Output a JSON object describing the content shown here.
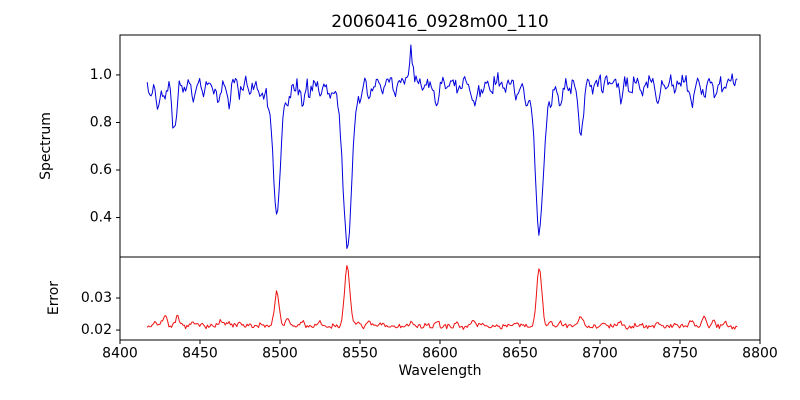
{
  "figure": {
    "background": "#ffffff"
  },
  "chart_data": {
    "type": "line",
    "title": "20060416_0928m00_110",
    "xlabel": "Wavelength",
    "grid": false,
    "legend": false,
    "x_range": [
      8400,
      8800
    ],
    "x_data_range": [
      8417,
      8786
    ],
    "x_ticks": [
      8400,
      8450,
      8500,
      8550,
      8600,
      8650,
      8700,
      8750,
      8800
    ],
    "x_tick_labels": [
      "8400",
      "8450",
      "8500",
      "8550",
      "8600",
      "8650",
      "8700",
      "8750",
      "8800"
    ],
    "main_absorption_lines": [
      8498,
      8542,
      8662
    ],
    "panels": [
      {
        "name": "spectrum",
        "ylabel": "Spectrum",
        "color": "#0000dd",
        "ylim": [
          0.234,
          1.168
        ],
        "y_ticks": [
          0.4,
          0.6,
          0.8,
          1.0
        ],
        "y_tick_labels": [
          "0.4",
          "0.6",
          "0.8",
          "1.0"
        ],
        "baseline": 0.975,
        "noise_amplitude": 0.045,
        "feature_sign": -1,
        "features_format": [
          "center_wavelength",
          "depth",
          "sigma"
        ],
        "features": [
          [
            8419,
            0.07,
            1.2
          ],
          [
            8424,
            0.1,
            1.3
          ],
          [
            8428,
            0.07,
            1.0
          ],
          [
            8434,
            0.21,
            1.5
          ],
          [
            8440,
            0.06,
            1.0
          ],
          [
            8446,
            0.08,
            1.2
          ],
          [
            8452,
            0.05,
            1.0
          ],
          [
            8458,
            0.04,
            1.0
          ],
          [
            8462,
            0.08,
            1.3
          ],
          [
            8468,
            0.1,
            1.4
          ],
          [
            8475,
            0.06,
            1.0
          ],
          [
            8481,
            0.04,
            1.0
          ],
          [
            8488,
            0.06,
            1.0
          ],
          [
            8493,
            0.04,
            0.9
          ],
          [
            8498.0,
            0.52,
            2.2
          ],
          [
            8498.0,
            0.06,
            7.0
          ],
          [
            8505,
            0.07,
            1.2
          ],
          [
            8514,
            0.09,
            1.4
          ],
          [
            8519,
            0.05,
            1.0
          ],
          [
            8525,
            0.05,
            1.0
          ],
          [
            8531,
            0.04,
            1.0
          ],
          [
            8542.1,
            0.64,
            2.6
          ],
          [
            8542.1,
            0.06,
            9.0
          ],
          [
            8550,
            0.04,
            1.0
          ],
          [
            8556,
            0.06,
            1.1
          ],
          [
            8564,
            0.05,
            1.0
          ],
          [
            8572,
            0.04,
            1.0
          ],
          [
            8582,
            -0.13,
            0.8
          ],
          [
            8590,
            0.05,
            1.0
          ],
          [
            8598,
            0.1,
            1.4
          ],
          [
            8605,
            0.04,
            1.0
          ],
          [
            8611,
            0.05,
            1.0
          ],
          [
            8621,
            0.1,
            1.5
          ],
          [
            8626,
            0.07,
            1.2
          ],
          [
            8632,
            0.05,
            1.0
          ],
          [
            8640,
            0.04,
            1.0
          ],
          [
            8648,
            0.07,
            1.2
          ],
          [
            8654,
            0.05,
            1.0
          ],
          [
            8662.1,
            0.585,
            2.4
          ],
          [
            8662.1,
            0.06,
            8.0
          ],
          [
            8669,
            0.06,
            1.1
          ],
          [
            8675,
            0.1,
            1.3
          ],
          [
            8681,
            0.04,
            1.0
          ],
          [
            8688,
            0.22,
            1.6
          ],
          [
            8696,
            0.05,
            1.0
          ],
          [
            8702,
            0.05,
            1.0
          ],
          [
            8713,
            0.08,
            1.3
          ],
          [
            8719,
            0.04,
            1.0
          ],
          [
            8726,
            0.05,
            1.0
          ],
          [
            8736,
            0.08,
            1.3
          ],
          [
            8742,
            0.04,
            1.0
          ],
          [
            8747,
            0.05,
            1.0
          ],
          [
            8757,
            0.09,
            1.3
          ],
          [
            8765,
            0.06,
            1.1
          ],
          [
            8772,
            0.07,
            1.2
          ],
          [
            8778,
            0.05,
            1.0
          ]
        ]
      },
      {
        "name": "error",
        "ylabel": "Error",
        "color": "#ee1111",
        "ylim": [
          0.0169,
          0.0428
        ],
        "y_ticks": [
          0.02,
          0.03
        ],
        "y_tick_labels": [
          "0.02",
          "0.03"
        ],
        "baseline": 0.0212,
        "noise_amplitude": 0.0012,
        "feature_sign": 1,
        "features_format": [
          "center_wavelength",
          "height",
          "sigma"
        ],
        "features": [
          [
            8422,
            0.0015,
            1.2
          ],
          [
            8428,
            0.0036,
            1.3
          ],
          [
            8436,
            0.0026,
            1.2
          ],
          [
            8446,
            0.0012,
            1.0
          ],
          [
            8452,
            0.001,
            1.0
          ],
          [
            8463,
            0.0016,
            1.2
          ],
          [
            8468,
            0.0012,
            1.1
          ],
          [
            8475,
            0.001,
            1.0
          ],
          [
            8488,
            0.001,
            1.0
          ],
          [
            8498,
            0.0105,
            1.5
          ],
          [
            8505,
            0.0022,
            1.1
          ],
          [
            8514,
            0.0015,
            1.1
          ],
          [
            8525,
            0.001,
            1.0
          ],
          [
            8542,
            0.0195,
            1.6
          ],
          [
            8549,
            0.0014,
            1.0
          ],
          [
            8556,
            0.0011,
            1.0
          ],
          [
            8564,
            0.0009,
            1.0
          ],
          [
            8582,
            0.0013,
            0.9
          ],
          [
            8598,
            0.0014,
            1.1
          ],
          [
            8611,
            0.001,
            1.0
          ],
          [
            8621,
            0.0015,
            1.1
          ],
          [
            8626,
            0.001,
            1.0
          ],
          [
            8648,
            0.0011,
            1.0
          ],
          [
            8662,
            0.018,
            1.6
          ],
          [
            8669,
            0.0013,
            1.0
          ],
          [
            8675,
            0.0014,
            1.0
          ],
          [
            8688,
            0.0032,
            1.3
          ],
          [
            8702,
            0.001,
            1.0
          ],
          [
            8713,
            0.0013,
            1.0
          ],
          [
            8726,
            0.001,
            1.0
          ],
          [
            8736,
            0.0012,
            1.0
          ],
          [
            8747,
            0.001,
            1.0
          ],
          [
            8757,
            0.0016,
            1.1
          ],
          [
            8765,
            0.003,
            1.2
          ],
          [
            8771,
            0.0018,
            1.0
          ],
          [
            8778,
            0.0012,
            1.0
          ]
        ]
      }
    ]
  }
}
